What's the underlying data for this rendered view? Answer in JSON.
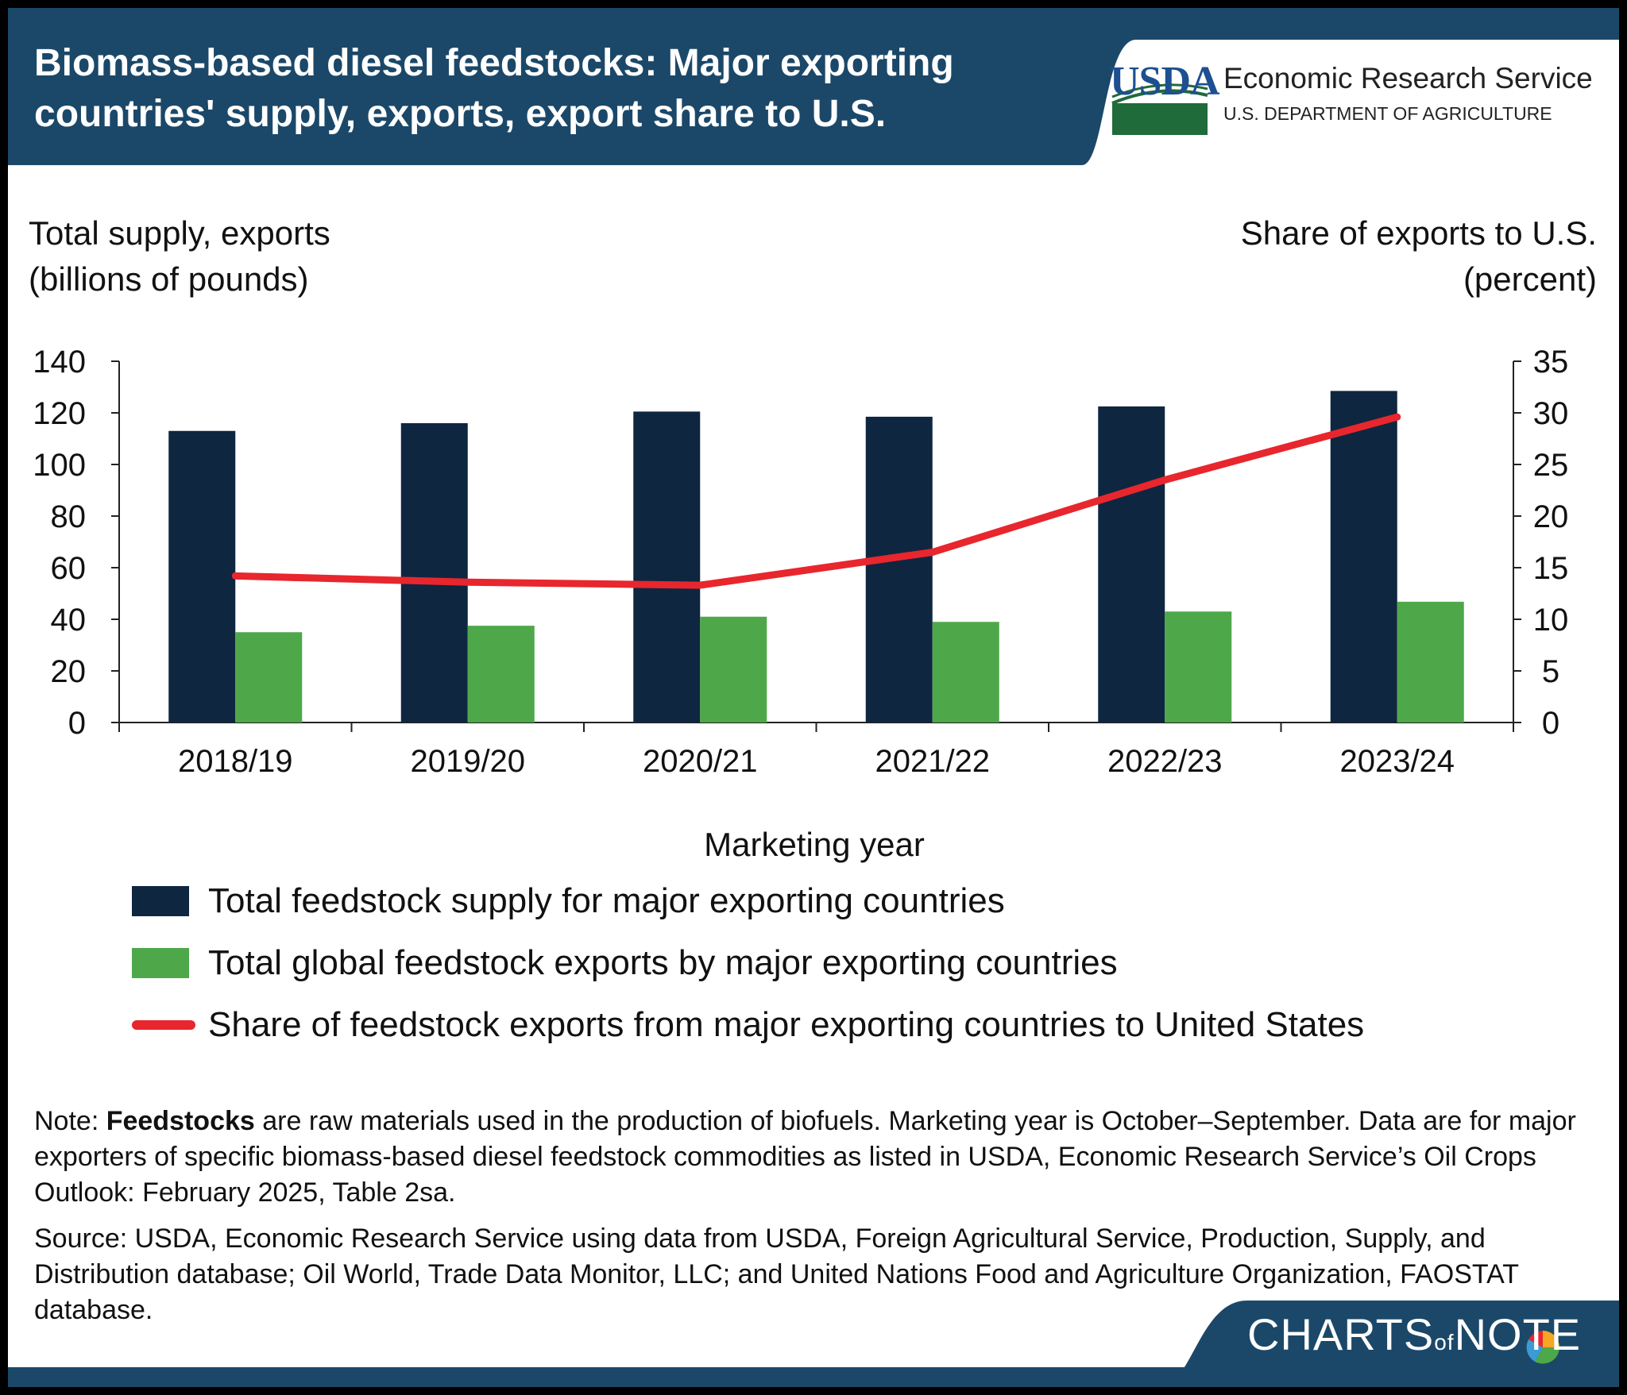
{
  "header": {
    "title": "Biomass-based diesel feedstocks: Major exporting countries' supply, exports, export share to U.S.",
    "logo_text": "USDA",
    "agency": "Economic Research Service",
    "department": "U.S. DEPARTMENT OF AGRICULTURE"
  },
  "chart_data": {
    "type": "bar",
    "categories": [
      "2018/19",
      "2019/20",
      "2020/21",
      "2021/22",
      "2022/23",
      "2023/24"
    ],
    "series": [
      {
        "name": "Total feedstock supply for major exporting countries",
        "type": "bar",
        "axis": "left",
        "color": "#0f2640",
        "values": [
          113,
          116,
          120.5,
          118.5,
          122.5,
          128.5
        ]
      },
      {
        "name": "Total global feedstock exports by major exporting countries",
        "type": "bar",
        "axis": "left",
        "color": "#4ea84a",
        "values": [
          35,
          37.5,
          41,
          39,
          43,
          46.8
        ]
      },
      {
        "name": "Share of feedstock exports from major exporting countries to United States",
        "type": "line",
        "axis": "right",
        "color": "#e8262d",
        "values": [
          14.2,
          13.6,
          13.3,
          16.5,
          23.5,
          29.6
        ]
      }
    ],
    "ylabel_left": [
      "Total supply, exports",
      "(billions of pounds)"
    ],
    "ylabel_right": [
      "Share of exports to U.S.",
      "(percent)"
    ],
    "xlabel": "Marketing year",
    "ylim_left": [
      0,
      140
    ],
    "ylim_right": [
      0,
      35
    ],
    "yticks_left": [
      0,
      20,
      40,
      60,
      80,
      100,
      120,
      140
    ],
    "yticks_right": [
      0,
      5,
      10,
      15,
      20,
      25,
      30,
      35
    ],
    "grid": false,
    "legend_position": "bottom"
  },
  "footnotes": {
    "note_prefix": "Note: ",
    "note_term": "Feedstocks",
    "note_text": " are raw materials used in the production of biofuels. Marketing year is October–September. Data are for major exporters of specific biomass-based diesel feedstock commodities as listed in USDA, Economic Research Service’s Oil Crops Outlook: February 2025, Table 2sa.",
    "source": "Source: USDA, Economic Research Service using data from USDA, Foreign Agricultural Service, Production, Supply, and Distribution database; Oil World, Trade Data Monitor, LLC; and United Nations Food and Agriculture Organization, FAOSTAT database."
  },
  "brand": {
    "part1": "CHARTS",
    "part2": "of",
    "part3": "NOTE"
  }
}
